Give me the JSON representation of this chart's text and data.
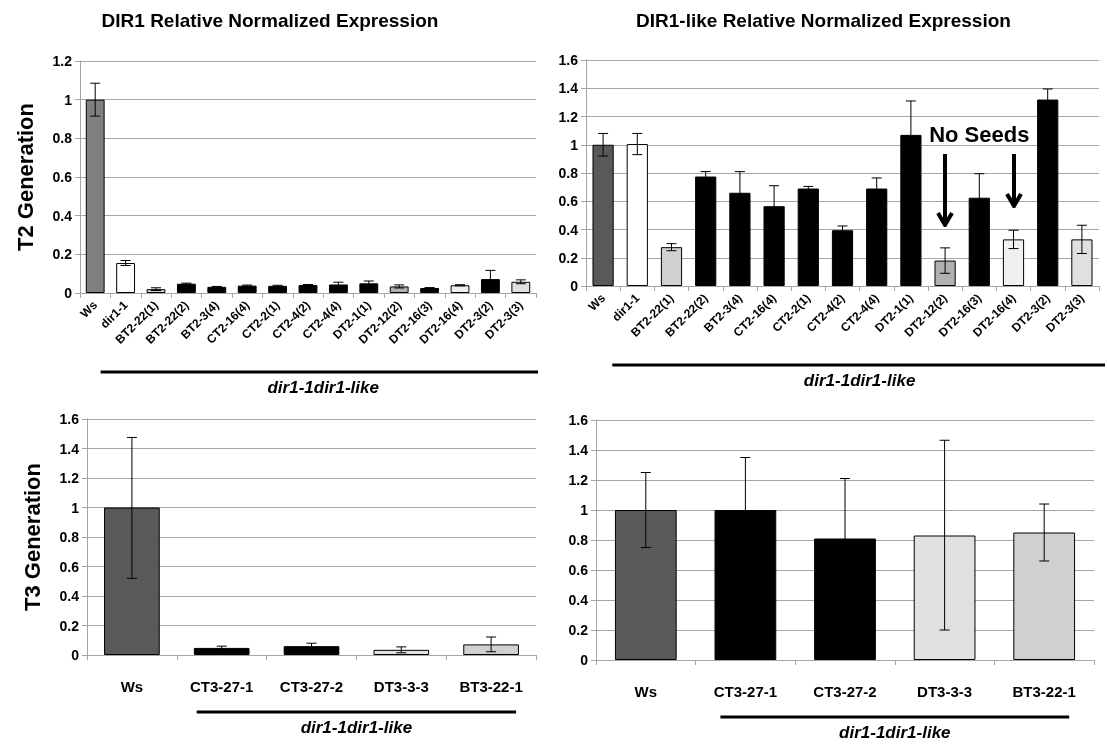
{
  "chart_data": [
    {
      "type": "bar",
      "title": "DIR1 Relative Normalized Expression",
      "ylabel": "T2 Generation",
      "categories": [
        "Ws",
        "dir1-1",
        "BT2-22(1)",
        "BT2-22(2)",
        "BT2-3(4)",
        "CT2-16(4)",
        "CT2-2(1)",
        "CT2-4(2)",
        "CT2-4(4)",
        "DT2-1(1)",
        "DT2-12(2)",
        "DT2-16(3)",
        "DT2-16(4)",
        "DT2-3(2)",
        "DT2-3(3)"
      ],
      "values": [
        1,
        0.155,
        0.02,
        0.048,
        0.032,
        0.038,
        0.037,
        0.041,
        0.044,
        0.05,
        0.034,
        0.026,
        0.04,
        0.072,
        0.058
      ],
      "errors": [
        0.085,
        0.013,
        0.007,
        0.003,
        0.002,
        0.003,
        0.003,
        0.003,
        0.012,
        0.012,
        0.008,
        0.002,
        0.003,
        0.045,
        0.01
      ],
      "colors": [
        "#808080",
        "#ffffff",
        "#d0d0d0",
        "#000000",
        "#000000",
        "#000000",
        "#000000",
        "#000000",
        "#000000",
        "#000000",
        "#b0b0b0",
        "#000000",
        "#f0f0f0",
        "#000000",
        "#e0e0e0"
      ],
      "ylim": [
        0,
        1.2
      ],
      "yticks": [
        0,
        0.2,
        0.4,
        0.6,
        0.8,
        1,
        1.2
      ],
      "grid": "y",
      "annotations": [
        "dir1-1dir1-like"
      ]
    },
    {
      "type": "bar",
      "title": "DIR1-like Relative Normalized Expression",
      "categories": [
        "Ws",
        "dir1-1",
        "BT2-22(1)",
        "BT2-22(2)",
        "BT2-3(4)",
        "CT2-16(4)",
        "CT2-2(1)",
        "CT2-4(2)",
        "CT2-4(4)",
        "DT2-1(1)",
        "DT2-12(2)",
        "DT2-16(3)",
        "DT2-16(4)",
        "DT2-3(2)",
        "DT2-3(3)"
      ],
      "values": [
        1,
        1.005,
        0.275,
        0.775,
        0.66,
        0.565,
        0.69,
        0.395,
        0.69,
        1.07,
        0.18,
        0.625,
        0.33,
        1.32,
        0.33
      ],
      "errors": [
        0.08,
        0.075,
        0.025,
        0.035,
        0.15,
        0.145,
        0.015,
        0.03,
        0.075,
        0.24,
        0.09,
        0.17,
        0.065,
        0.075,
        0.1
      ],
      "colors": [
        "#595959",
        "#ffffff",
        "#d0d0d0",
        "#000000",
        "#000000",
        "#000000",
        "#000000",
        "#000000",
        "#000000",
        "#000000",
        "#b0b0b0",
        "#000000",
        "#f0f0f0",
        "#000000",
        "#e0e0e0"
      ],
      "ylim": [
        0,
        1.6
      ],
      "yticks": [
        0,
        0.2,
        0.4,
        0.6,
        0.8,
        1,
        1.2,
        1.4,
        1.6
      ],
      "grid": "y",
      "annotations": [
        "No Seeds",
        "dir1-1dir1-like"
      ]
    },
    {
      "type": "bar",
      "ylabel": "T3 Generation",
      "categories": [
        "Ws",
        "CT3-27-1",
        "CT3-27-2",
        "DT3-3-3",
        "BT3-22-1"
      ],
      "values": [
        1,
        0.048,
        0.06,
        0.035,
        0.072
      ],
      "errors": [
        [
          0.52,
          1.475
        ],
        0.012,
        0.02,
        0.02,
        0.05
      ],
      "colors": [
        "#595959",
        "#000000",
        "#000000",
        "#e0e0e0",
        "#d0d0d0"
      ],
      "ylim": [
        0,
        1.6
      ],
      "yticks": [
        0,
        0.2,
        0.4,
        0.6,
        0.8,
        1,
        1.2,
        1.4,
        1.6
      ],
      "grid": "y",
      "annotations": [
        "dir1-1dir1-like"
      ]
    },
    {
      "type": "bar",
      "categories": [
        "Ws",
        "CT3-27-1",
        "CT3-27-2",
        "DT3-3-3",
        "BT3-22-1"
      ],
      "values": [
        1,
        1,
        0.81,
        0.83,
        0.85
      ],
      "errors": [
        [
          0.75,
          1.25
        ],
        0.35,
        0.4,
        [
          0.2,
          1.465
        ],
        [
          0.66,
          1.04
        ]
      ],
      "colors": [
        "#595959",
        "#000000",
        "#000000",
        "#e0e0e0",
        "#d0d0d0"
      ],
      "ylim": [
        0,
        1.6
      ],
      "yticks": [
        0,
        0.2,
        0.4,
        0.6,
        0.8,
        1,
        1.2,
        1.4,
        1.6
      ],
      "grid": "y",
      "annotations": [
        "dir1-1dir1-like"
      ]
    }
  ]
}
